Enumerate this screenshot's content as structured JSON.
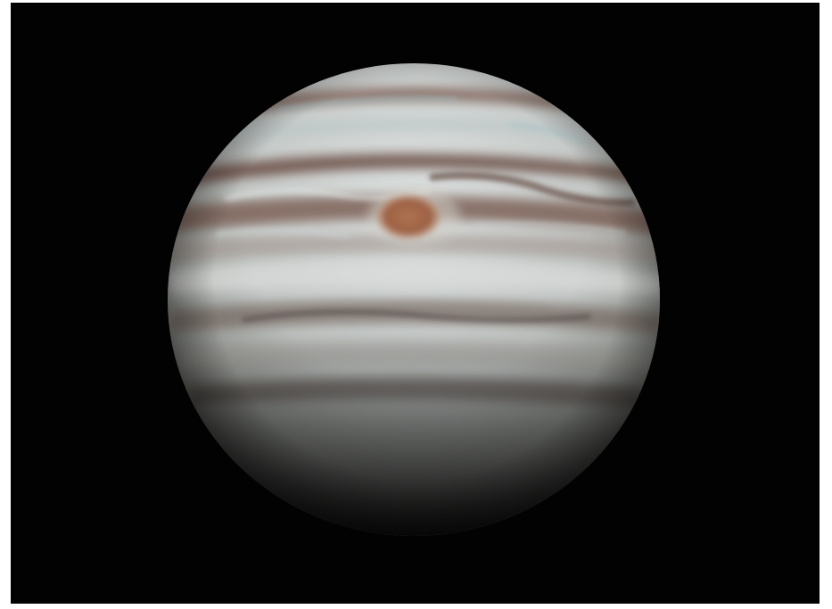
{
  "image": {
    "subject": "planet-jupiter",
    "features": [
      "cloud-bands",
      "great-red-spot"
    ],
    "colors": {
      "background": "#020202",
      "band_light": "#d8dcdc",
      "band_dark": "#7a5a4c",
      "red_spot": "#a6684a",
      "limb_shadow": "#1a1a1a"
    }
  }
}
